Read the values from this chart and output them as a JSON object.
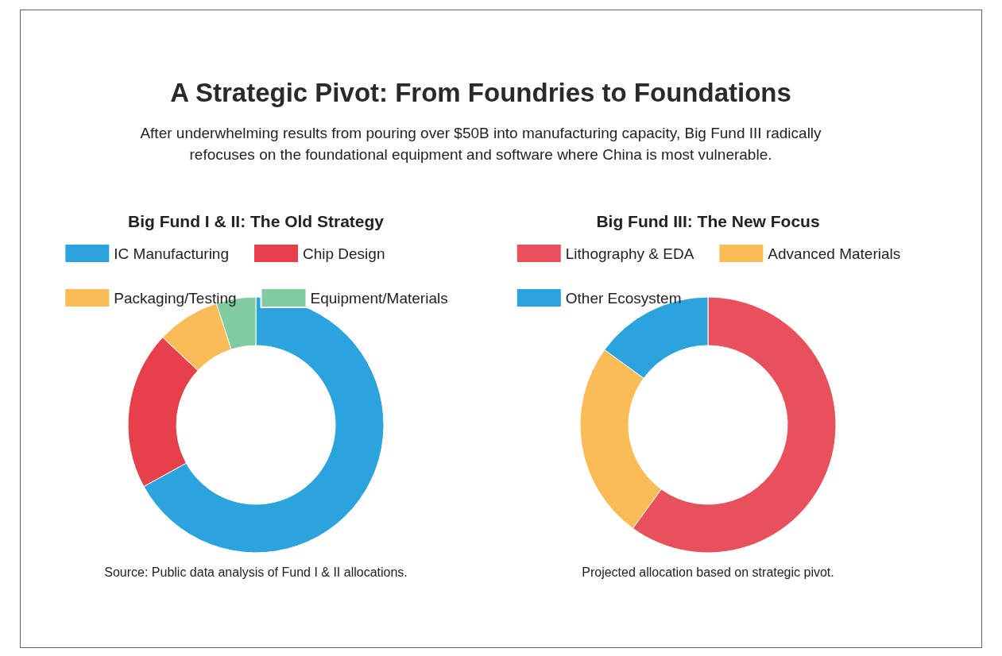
{
  "chart_data": [
    {
      "type": "other",
      "title": "A Strategic Pivot: From Foundries to Foundations",
      "subtitle": "After underwhelming results from pouring over $50B into manufacturing capacity, Big Fund III radically refocuses on the foundational equipment and software where China is most vulnerable."
    },
    {
      "type": "donut",
      "title": "Big Fund I & II: The Old Strategy",
      "categories": [
        "IC Manufacturing",
        "Chip Design",
        "Packaging/Testing",
        "Equipment/Materials"
      ],
      "values": [
        67,
        20,
        8,
        5
      ],
      "colors": [
        "#2ba3dd",
        "#e8404a",
        "#f9bc57",
        "#80cba0"
      ],
      "legend": "top",
      "annotations": [
        "Source: Public data analysis of Fund I & II allocations."
      ]
    },
    {
      "type": "donut",
      "title": "Big Fund III: The New Focus",
      "categories": [
        "Lithography & EDA",
        "Advanced Materials",
        "Other Ecosystem"
      ],
      "values": [
        60,
        25,
        15
      ],
      "colors": [
        "#e8505b",
        "#f9bc57",
        "#2ba3dd"
      ],
      "legend": "top",
      "annotations": [
        "Projected allocation based on strategic pivot."
      ]
    }
  ]
}
